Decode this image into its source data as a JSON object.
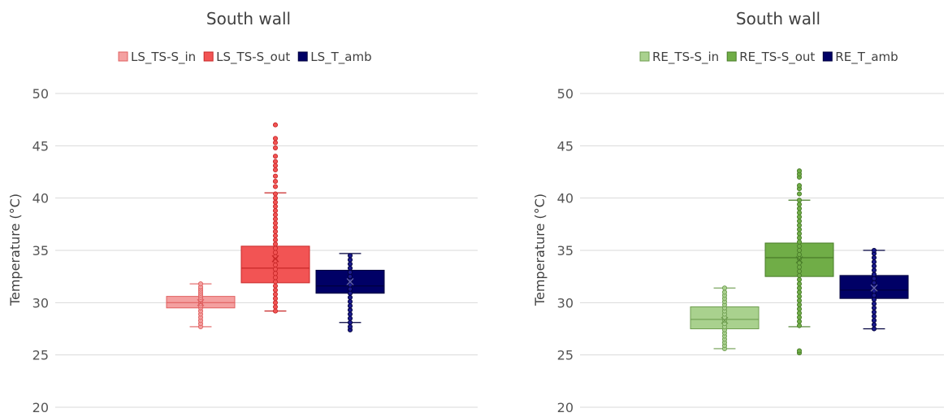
{
  "chart_data": [
    {
      "type": "box",
      "title": "South wall",
      "ylabel": "Temperature (°C)",
      "xlabel": "",
      "ylim": [
        20,
        50
      ],
      "yticks": [
        20,
        25,
        30,
        35,
        40,
        45,
        50
      ],
      "grid": true,
      "legend": "top-center",
      "series": [
        {
          "name": "LS_TS-S_in",
          "fill": "#f4a0a0",
          "stroke": "#e06060",
          "min": 27.7,
          "q1": 29.5,
          "median": 30.0,
          "q3": 30.6,
          "max": 31.8,
          "mean": 30.0,
          "points": [
            27.7,
            28.0,
            28.3,
            28.6,
            28.9,
            29.2,
            29.5,
            29.7,
            29.9,
            30.1,
            30.3,
            30.5,
            30.7,
            30.9,
            31.1,
            31.3,
            31.5,
            31.8
          ]
        },
        {
          "name": "LS_TS-S_out",
          "fill": "#f25454",
          "stroke": "#c82828",
          "min": 29.2,
          "q1": 31.9,
          "median": 33.3,
          "q3": 35.4,
          "max": 40.5,
          "mean": 34.2,
          "points": [
            29.2,
            29.6,
            30.0,
            30.4,
            30.8,
            31.2,
            31.6,
            32.0,
            32.4,
            32.8,
            33.2,
            33.6,
            34.0,
            34.4,
            34.8,
            35.2,
            35.6,
            36.0,
            36.4,
            36.8,
            37.2,
            37.6,
            38.0,
            38.4,
            38.8,
            39.2,
            39.6,
            40.0,
            40.4,
            41.1,
            41.6,
            42.1,
            42.7,
            43.1,
            43.5,
            44.0,
            44.8,
            45.3,
            45.7,
            47.0
          ]
        },
        {
          "name": "LS_T_amb",
          "fill": "#000066",
          "stroke": "#00003d",
          "min": 28.1,
          "q1": 30.9,
          "median": 31.6,
          "q3": 33.1,
          "max": 34.7,
          "mean": 32.0,
          "points": [
            27.4,
            27.7,
            28.1,
            28.5,
            28.9,
            29.3,
            29.7,
            30.1,
            30.5,
            30.9,
            31.3,
            31.7,
            32.1,
            32.5,
            32.9,
            33.3,
            33.7,
            34.1,
            34.5
          ]
        }
      ]
    },
    {
      "type": "box",
      "title": "South wall",
      "ylabel": "Temperature (°C)",
      "xlabel": "",
      "ylim": [
        20,
        50
      ],
      "yticks": [
        20,
        25,
        30,
        35,
        40,
        45,
        50
      ],
      "grid": true,
      "legend": "top-center",
      "series": [
        {
          "name": "RE_TS-S_in",
          "fill": "#a9d18e",
          "stroke": "#6f9e50",
          "min": 25.6,
          "q1": 27.5,
          "median": 28.4,
          "q3": 29.6,
          "max": 31.4,
          "mean": 28.3,
          "points": [
            25.6,
            25.9,
            26.2,
            26.5,
            26.8,
            27.1,
            27.4,
            27.7,
            28.0,
            28.3,
            28.6,
            28.9,
            29.2,
            29.5,
            29.8,
            30.1,
            30.4,
            30.7,
            31.0,
            31.4
          ]
        },
        {
          "name": "RE_TS-S_out",
          "fill": "#70ad47",
          "stroke": "#4a7d2a",
          "min": 27.7,
          "q1": 32.5,
          "median": 34.3,
          "q3": 35.7,
          "max": 39.8,
          "mean": 34.1,
          "points": [
            25.2,
            25.4,
            27.8,
            28.2,
            28.6,
            29.0,
            29.4,
            29.8,
            30.2,
            30.6,
            31.0,
            31.4,
            31.8,
            32.2,
            32.6,
            33.0,
            33.4,
            33.8,
            34.2,
            34.6,
            35.0,
            35.4,
            35.8,
            36.2,
            36.6,
            37.0,
            37.4,
            37.8,
            38.2,
            38.6,
            39.0,
            39.4,
            39.8,
            40.4,
            40.9,
            41.2,
            42.0,
            42.3,
            42.6
          ]
        },
        {
          "name": "RE_T_amb",
          "fill": "#000066",
          "stroke": "#00003d",
          "min": 27.5,
          "q1": 30.4,
          "median": 31.2,
          "q3": 32.6,
          "max": 35.0,
          "mean": 31.4,
          "points": [
            27.5,
            27.9,
            28.3,
            28.7,
            29.1,
            29.5,
            29.9,
            30.3,
            30.7,
            31.1,
            31.5,
            31.9,
            32.3,
            32.7,
            33.1,
            33.5,
            33.9,
            34.3,
            34.7,
            35.0
          ]
        }
      ]
    }
  ]
}
